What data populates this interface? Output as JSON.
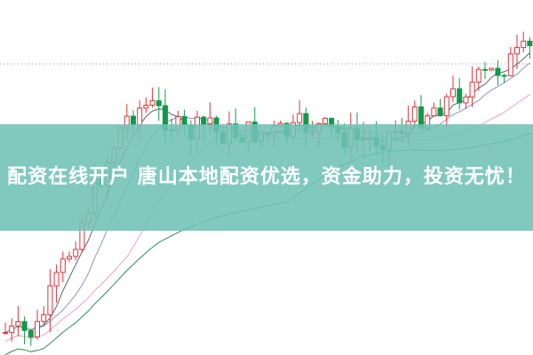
{
  "banner": {
    "title": "配资在线开户 唐山本地配资优选，资金助力，投资无忧！"
  },
  "colors": {
    "banner": "#70c2b6",
    "candle_up": "#e0333a",
    "candle_down": "#0f9a4a",
    "ma_short": "#556677",
    "ma_mid": "#e7a1c9",
    "ma_long": "#2e8b57"
  }
}
